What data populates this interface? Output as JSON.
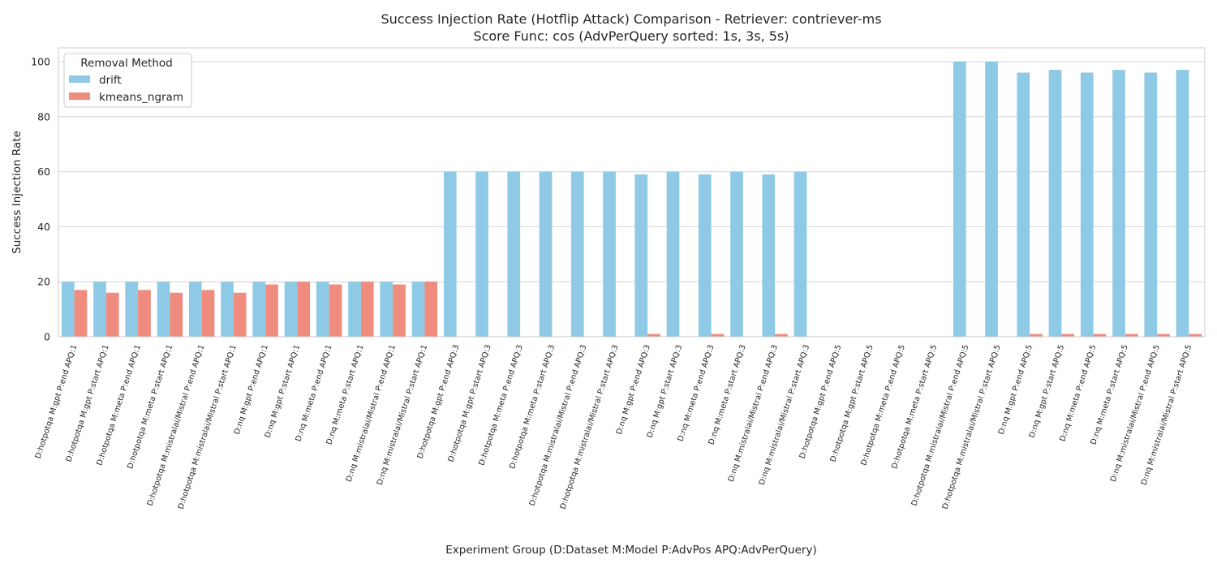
{
  "chart_data": {
    "type": "bar",
    "title_lines": [
      "Success Injection Rate (Hotflip Attack) Comparison - Retriever: contriever-ms",
      "Score Func: cos (AdvPerQuery sorted: 1s, 3s, 5s)"
    ],
    "xlabel": "Experiment Group (D:Dataset M:Model P:AdvPos APQ:AdvPerQuery)",
    "ylabel": "Success Injection Rate",
    "ylim": [
      0,
      105
    ],
    "yticks": [
      0,
      20,
      40,
      60,
      80,
      100
    ],
    "grid": "horizontal",
    "legend": {
      "title": "Removal Method",
      "placement": "top-left"
    },
    "categories": [
      "D:hotpotqa M:gpt P:end APQ:1",
      "D:hotpotqa M:gpt P:start APQ:1",
      "D:hotpotqa M:meta P:end APQ:1",
      "D:hotpotqa M:meta P:start APQ:1",
      "D:hotpotqa M:mistralai/Mistral P:end APQ:1",
      "D:hotpotqa M:mistralai/Mistral P:start APQ:1",
      "D:nq M:gpt P:end APQ:1",
      "D:nq M:gpt P:start APQ:1",
      "D:nq M:meta P:end APQ:1",
      "D:nq M:meta P:start APQ:1",
      "D:nq M:mistralai/Mistral P:end APQ:1",
      "D:nq M:mistralai/Mistral P:start APQ:1",
      "D:hotpotqa M:gpt P:end APQ:3",
      "D:hotpotqa M:gpt P:start APQ:3",
      "D:hotpotqa M:meta P:end APQ:3",
      "D:hotpotqa M:meta P:start APQ:3",
      "D:hotpotqa M:mistralai/Mistral P:end APQ:3",
      "D:hotpotqa M:mistralai/Mistral P:start APQ:3",
      "D:nq M:gpt P:end APQ:3",
      "D:nq M:gpt P:start APQ:3",
      "D:nq M:meta P:end APQ:3",
      "D:nq M:meta P:start APQ:3",
      "D:nq M:mistralai/Mistral P:end APQ:3",
      "D:nq M:mistralai/Mistral P:start APQ:3",
      "D:hotpotqa M:gpt P:end APQ:5",
      "D:hotpotqa M:gpt P:start APQ:5",
      "D:hotpotqa M:meta P:end APQ:5",
      "D:hotpotqa M:meta P:start APQ:5",
      "D:hotpotqa M:mistralai/Mistral P:end APQ:5",
      "D:hotpotqa M:mistralai/Mistral P:start APQ:5",
      "D:nq M:gpt P:end APQ:5",
      "D:nq M:gpt P:start APQ:5",
      "D:nq M:meta P:end APQ:5",
      "D:nq M:meta P:start APQ:5",
      "D:nq M:mistralai/Mistral P:end APQ:5",
      "D:nq M:mistralai/Mistral P:start APQ:5"
    ],
    "series": [
      {
        "name": "drift",
        "color": "#8ecae6",
        "values": [
          20,
          20,
          20,
          20,
          20,
          20,
          20,
          20,
          20,
          20,
          20,
          20,
          60,
          60,
          60,
          60,
          60,
          60,
          59,
          60,
          59,
          60,
          59,
          60,
          0,
          0,
          0,
          0,
          100,
          100,
          96,
          97,
          96,
          97,
          96,
          97
        ]
      },
      {
        "name": "kmeans_ngram",
        "color": "#f08c7e",
        "values": [
          17,
          16,
          17,
          16,
          17,
          16,
          19,
          20,
          19,
          20,
          19,
          20,
          0,
          0,
          0,
          0,
          0,
          0,
          1,
          0,
          1,
          0,
          1,
          0,
          0,
          0,
          0,
          0,
          0,
          0,
          1,
          1,
          1,
          1,
          1,
          1
        ]
      }
    ]
  }
}
